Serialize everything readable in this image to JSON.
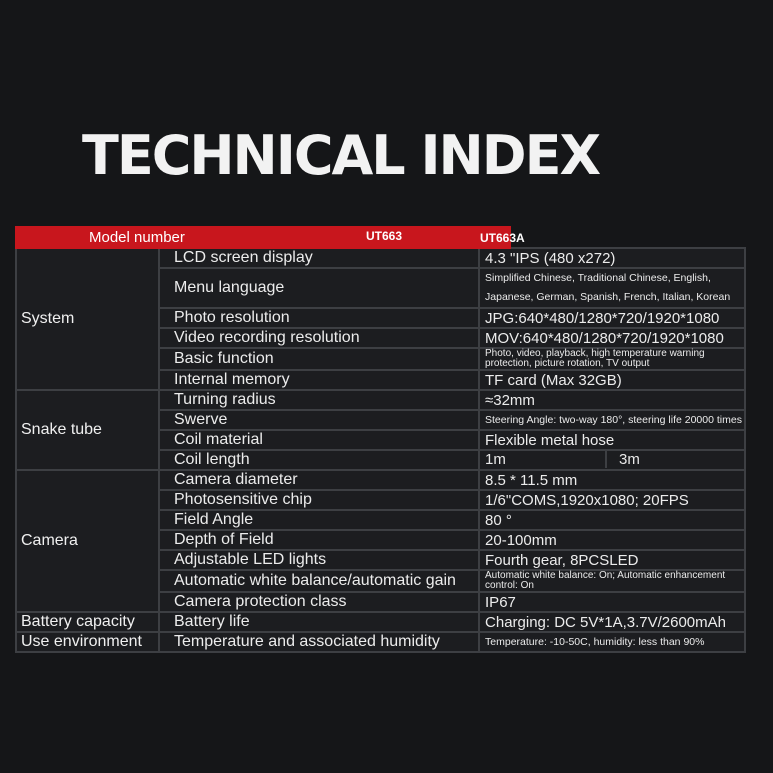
{
  "title": "TECHNICAL INDEX",
  "header": {
    "col1": "Model number",
    "col2": "UT663",
    "col3": "UT663A"
  },
  "categories": {
    "system": "System",
    "snake": "Snake tube",
    "camera": "Camera",
    "battery": "Battery capacity",
    "env": "Use environment"
  },
  "rows": [
    {
      "feature": "LCD screen display",
      "value": "4.3 \"IPS (480 x272)"
    },
    {
      "feature": "Menu language",
      "value": "Simplified Chinese, Traditional Chinese, English, Japanese, German, Spanish, French, Italian, Korean"
    },
    {
      "feature": "Photo resolution",
      "value": "JPG:640*480/1280*720/1920*1080"
    },
    {
      "feature": "Video recording resolution",
      "value": "MOV:640*480/1280*720/1920*1080"
    },
    {
      "feature": "Basic function",
      "value": "Photo, video, playback, high temperature warning protection, picture rotation, TV output"
    },
    {
      "feature": "Internal memory",
      "value": "TF card (Max 32GB)"
    },
    {
      "feature": "Turning radius",
      "value": "≈32mm"
    },
    {
      "feature": "Swerve",
      "value": "Steering Angle: two-way 180°, steering life 20000 times"
    },
    {
      "feature": "Coil material",
      "value": "Flexible metal hose"
    },
    {
      "feature": "Coil length",
      "value": "1m",
      "value2": "3m"
    },
    {
      "feature": "Camera diameter",
      "value": "8.5 * 11.5 mm"
    },
    {
      "feature": "Photosensitive chip",
      "value": "1/6\"COMS,1920x1080; 20FPS"
    },
    {
      "feature": "Field Angle",
      "value": "80 °"
    },
    {
      "feature": "Depth of Field",
      "value": "20-100mm"
    },
    {
      "feature": "Adjustable LED lights",
      "value": "Fourth gear, 8PCSLED"
    },
    {
      "feature": "Automatic white balance/automatic gain",
      "value": "Automatic white balance: On; Automatic enhancement control: On"
    },
    {
      "feature": "Camera protection class",
      "value": "IP67"
    },
    {
      "feature": "Battery life",
      "value": "Charging: DC 5V*1A,3.7V/2600mAh"
    },
    {
      "feature": "Temperature and associated humidity",
      "value": "Temperature: -10-50C, humidity: less than 90%"
    }
  ],
  "colors": {
    "header_red": "#c8161d",
    "background": "#151618",
    "grid": "#3d3f43"
  }
}
